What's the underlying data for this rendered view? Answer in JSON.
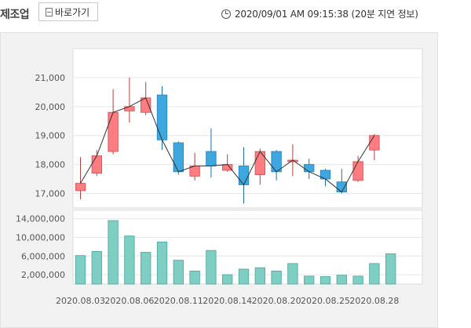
{
  "header": {
    "category": "제조업",
    "shortcut_label": "바로가기",
    "timestamp": "2020/09/01 AM 09:15:38 (20분 지연 정보)"
  },
  "chart_data": {
    "type": "candlestick",
    "price_ticks": [
      "21,000",
      "20,000",
      "19,000",
      "18,000",
      "17,000"
    ],
    "price_tick_values": [
      21000,
      20000,
      19000,
      18000,
      17000
    ],
    "price_range": [
      16500,
      22000
    ],
    "volume_ticks": [
      "14,000,000",
      "10,000,000",
      "6,000,000",
      "2,000,000"
    ],
    "volume_tick_values": [
      14000000,
      10000000,
      6000000,
      2000000
    ],
    "volume_range": [
      0,
      15800000
    ],
    "x_tick_labels": [
      "2020.08.03",
      "2020.08.06",
      "2020.08.11",
      "2020.08.14",
      "2020.08.20",
      "2020.08.25",
      "2020.08.28"
    ],
    "x_tick_index": [
      0,
      3,
      6,
      9,
      12,
      15,
      18
    ],
    "up_color": "#ff7c80",
    "down_color": "#3fa7df",
    "volume_color": "#7ecec4",
    "line_color": "#333333",
    "candles": [
      {
        "open": 17100,
        "close": 17350,
        "high": 18250,
        "low": 16800,
        "volume": 6100000
      },
      {
        "open": 17700,
        "close": 18300,
        "high": 18500,
        "low": 17600,
        "volume": 7000000
      },
      {
        "open": 18450,
        "close": 19800,
        "high": 20600,
        "low": 18350,
        "volume": 13600000
      },
      {
        "open": 19850,
        "close": 20000,
        "high": 21000,
        "low": 19450,
        "volume": 10300000
      },
      {
        "open": 19800,
        "close": 20300,
        "high": 20850,
        "low": 19700,
        "volume": 6800000
      },
      {
        "open": 20400,
        "close": 18850,
        "high": 20700,
        "low": 18500,
        "volume": 9000000
      },
      {
        "open": 18750,
        "close": 17750,
        "high": 18800,
        "low": 17650,
        "volume": 5100000
      },
      {
        "open": 17600,
        "close": 17950,
        "high": 18400,
        "low": 17450,
        "volume": 2800000
      },
      {
        "open": 18450,
        "close": 17950,
        "high": 19250,
        "low": 17550,
        "volume": 7200000
      },
      {
        "open": 17800,
        "close": 18000,
        "high": 18350,
        "low": 17750,
        "volume": 2000000
      },
      {
        "open": 17950,
        "close": 17300,
        "high": 18600,
        "low": 16650,
        "volume": 3200000
      },
      {
        "open": 17650,
        "close": 18450,
        "high": 18550,
        "low": 17300,
        "volume": 3500000
      },
      {
        "open": 18450,
        "close": 17750,
        "high": 18500,
        "low": 17450,
        "volume": 2800000
      },
      {
        "open": 18100,
        "close": 18150,
        "high": 18700,
        "low": 17600,
        "volume": 4400000
      },
      {
        "open": 18000,
        "close": 17750,
        "high": 18200,
        "low": 17500,
        "volume": 1700000
      },
      {
        "open": 17800,
        "close": 17500,
        "high": 17850,
        "low": 17250,
        "volume": 1600000
      },
      {
        "open": 17400,
        "close": 17050,
        "high": 17850,
        "low": 17000,
        "volume": 1900000
      },
      {
        "open": 17450,
        "close": 18100,
        "high": 18300,
        "low": 17400,
        "volume": 1700000
      },
      {
        "open": 18500,
        "close": 19000,
        "high": 19050,
        "low": 18150,
        "volume": 4400000
      },
      {
        "open": null,
        "close": null,
        "high": null,
        "low": null,
        "volume": 6500000
      }
    ]
  }
}
